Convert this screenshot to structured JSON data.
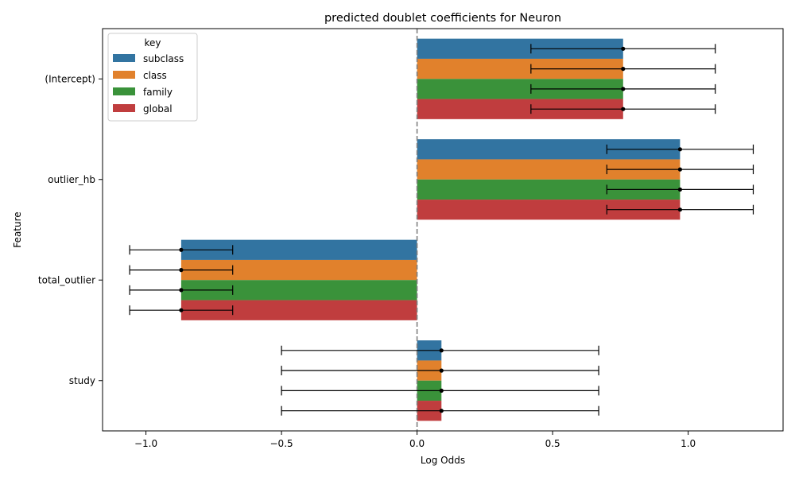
{
  "chart_data": {
    "type": "bar",
    "orientation": "horizontal",
    "title": "predicted doublet coefficients for Neuron",
    "xlabel": "Log Odds",
    "ylabel": "Feature",
    "categories": [
      "(Intercept)",
      "outlier_hb",
      "total_outlier",
      "study"
    ],
    "xlim": [
      -1.16,
      1.35
    ],
    "xticks": [
      -1.0,
      -0.5,
      0.0,
      0.5,
      1.0
    ],
    "xtick_labels": [
      "−1.0",
      "−0.5",
      "0.0",
      "0.5",
      "1.0"
    ],
    "reference_line": 0,
    "grid": false,
    "legend": {
      "title": "key",
      "placement": "top-left"
    },
    "series": [
      {
        "name": "subclass",
        "color": "#3274a1",
        "values": [
          0.76,
          0.97,
          -0.87,
          0.09
        ],
        "ci_low": [
          0.42,
          0.7,
          -1.06,
          -0.5
        ],
        "ci_high": [
          1.1,
          1.24,
          -0.68,
          0.67
        ]
      },
      {
        "name": "class",
        "color": "#e1812c",
        "values": [
          0.76,
          0.97,
          -0.87,
          0.09
        ],
        "ci_low": [
          0.42,
          0.7,
          -1.06,
          -0.5
        ],
        "ci_high": [
          1.1,
          1.24,
          -0.68,
          0.67
        ]
      },
      {
        "name": "family",
        "color": "#3a923a",
        "values": [
          0.76,
          0.97,
          -0.87,
          0.09
        ],
        "ci_low": [
          0.42,
          0.7,
          -1.06,
          -0.5
        ],
        "ci_high": [
          1.1,
          1.24,
          -0.68,
          0.67
        ]
      },
      {
        "name": "global",
        "color": "#c03d3e",
        "values": [
          0.76,
          0.97,
          -0.87,
          0.09
        ],
        "ci_low": [
          0.42,
          0.7,
          -1.06,
          -0.5
        ],
        "ci_high": [
          1.1,
          1.24,
          -0.68,
          0.67
        ]
      }
    ]
  }
}
